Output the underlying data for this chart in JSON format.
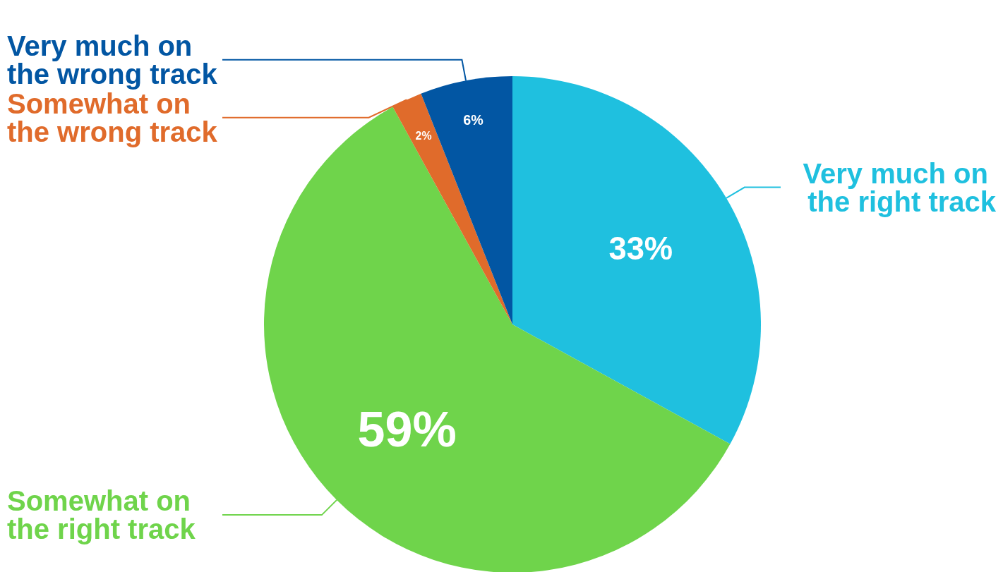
{
  "chart_data": {
    "type": "pie",
    "categories": [
      "Very much on the right track",
      "Somewhat on the right track",
      "Somewhat on the wrong track",
      "Very much on the wrong track"
    ],
    "values": [
      33,
      59,
      2,
      6
    ],
    "value_labels": [
      "33%",
      "59%",
      "2%",
      "6%"
    ],
    "colors": [
      "#1fc0df",
      "#6fd44b",
      "#e06b2b",
      "#0256a3"
    ]
  }
}
